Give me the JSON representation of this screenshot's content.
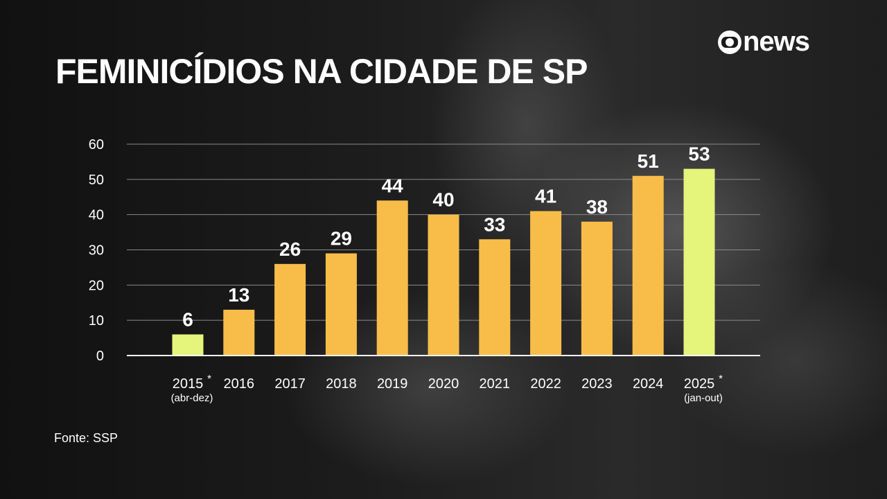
{
  "header": {
    "title": "FEMINICÍDIOS NA CIDADE DE SP",
    "logo": "news"
  },
  "footer": {
    "source": "Fonte: SSP"
  },
  "colors": {
    "regular": "#F8BD49",
    "partial_year": "#E5F47A",
    "grid": "#8a8a8a",
    "axis": "#ffffff"
  },
  "chart_data": {
    "type": "bar",
    "title": "FEMINICÍDIOS NA CIDADE DE SP",
    "categories": [
      "2015",
      "2016",
      "2017",
      "2018",
      "2019",
      "2020",
      "2021",
      "2022",
      "2023",
      "2024",
      "2025"
    ],
    "category_notes": [
      "(abr-dez)",
      "",
      "",
      "",
      "",
      "",
      "",
      "",
      "",
      "",
      "(jan-out)"
    ],
    "asterisk": [
      true,
      false,
      false,
      false,
      false,
      false,
      false,
      false,
      false,
      false,
      true
    ],
    "values": [
      6,
      13,
      26,
      29,
      44,
      40,
      33,
      41,
      38,
      51,
      53
    ],
    "yticks": [
      0,
      10,
      20,
      30,
      40,
      50,
      60
    ],
    "ylim": [
      0,
      60
    ],
    "grid": true,
    "xlabel": "",
    "ylabel": ""
  }
}
